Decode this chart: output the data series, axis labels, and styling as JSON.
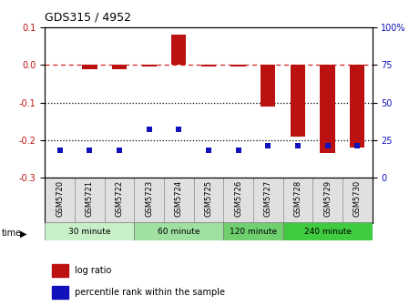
{
  "title": "GDS315 / 4952",
  "samples": [
    "GSM5720",
    "GSM5721",
    "GSM5722",
    "GSM5723",
    "GSM5724",
    "GSM5725",
    "GSM5726",
    "GSM5727",
    "GSM5728",
    "GSM5729",
    "GSM5730"
  ],
  "log_ratio": [
    0.0,
    -0.01,
    -0.01,
    -0.005,
    0.08,
    -0.005,
    -0.005,
    -0.11,
    -0.19,
    -0.235,
    -0.22
  ],
  "percentile_rank": [
    18,
    18,
    18,
    32,
    32,
    18,
    18,
    21,
    21,
    21,
    21
  ],
  "group_defs": [
    {
      "label": "30 minute",
      "indices": [
        0,
        1,
        2
      ],
      "color": "#c8f0c8"
    },
    {
      "label": "60 minute",
      "indices": [
        3,
        4,
        5
      ],
      "color": "#a0e0a0"
    },
    {
      "label": "120 minute",
      "indices": [
        6,
        7
      ],
      "color": "#70d070"
    },
    {
      "label": "240 minute",
      "indices": [
        8,
        9,
        10
      ],
      "color": "#40cc40"
    }
  ],
  "ylim_left": [
    -0.3,
    0.1
  ],
  "ylim_right": [
    0,
    100
  ],
  "y_ticks_left": [
    -0.3,
    -0.2,
    -0.1,
    0.0,
    0.1
  ],
  "y_ticks_right": [
    0,
    25,
    50,
    75,
    100
  ],
  "bar_color": "#bb1111",
  "dot_color": "#1111bb",
  "dashed_line_color": "#cc2222",
  "dotted_line_color": "#000000",
  "bar_width": 0.5,
  "dot_size": 5
}
